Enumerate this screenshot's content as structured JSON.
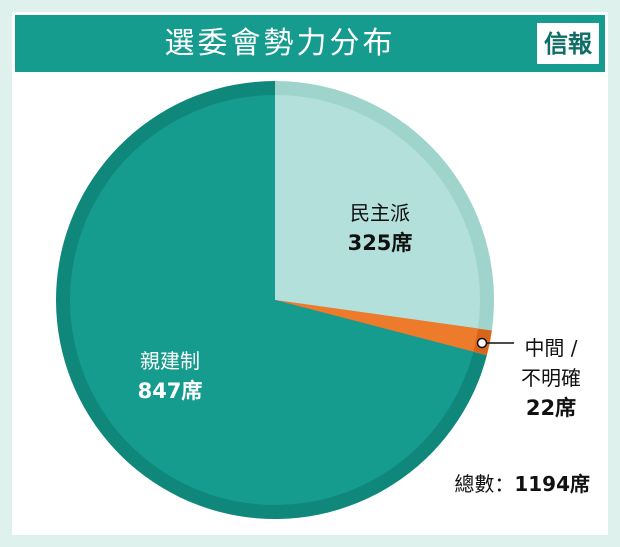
{
  "chart_data": {
    "type": "pie",
    "title": "選委會勢力分布",
    "brand": "信報",
    "categories": [
      "民主派",
      "中間 / 不明確",
      "親建制"
    ],
    "values": [
      325,
      22,
      847
    ],
    "value_labels": [
      "325席",
      "22席",
      "847席"
    ],
    "colors": [
      "#b3e0da",
      "#ee7b2b",
      "#169b8f"
    ],
    "ring_colors": [
      "#9fd4cd",
      "#d9651a",
      "#0f877b"
    ],
    "total": {
      "label": "總數：",
      "value": 1194,
      "value_label": "1194席"
    }
  }
}
